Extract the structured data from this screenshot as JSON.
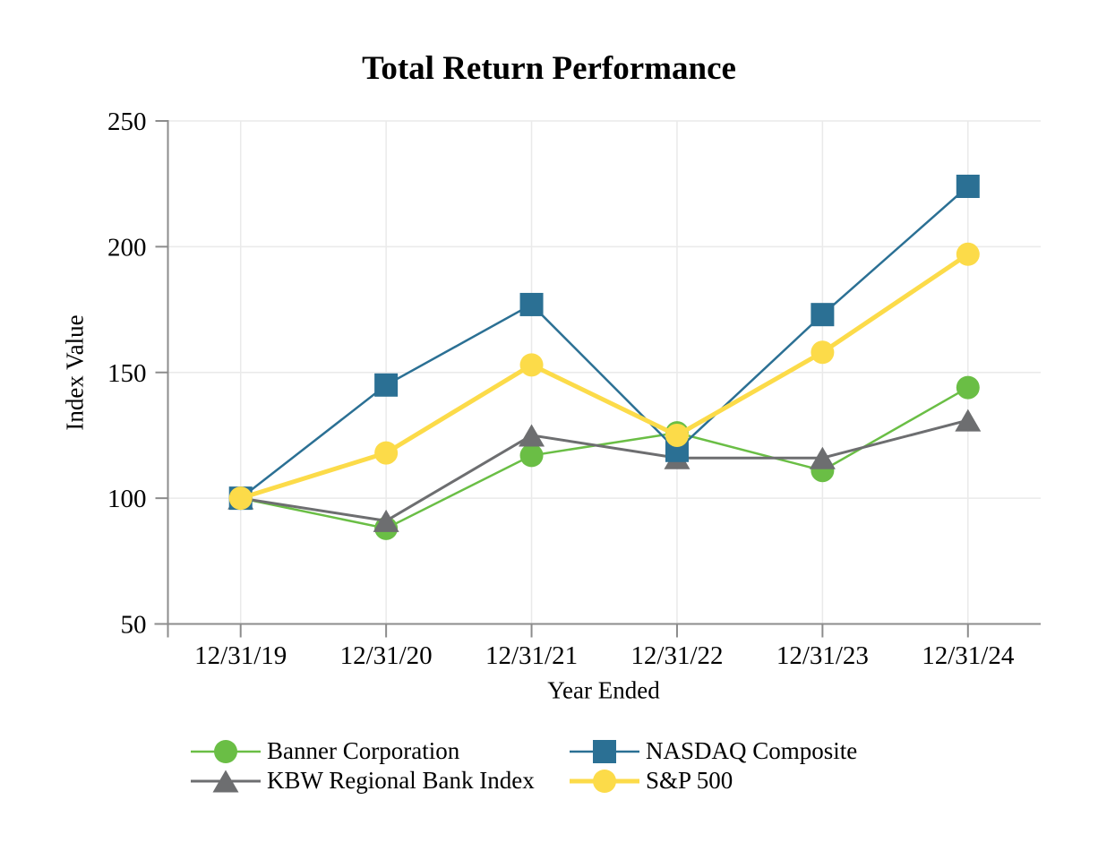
{
  "chart_data": {
    "type": "line",
    "title": "Total Return Performance",
    "xlabel": "Year Ended",
    "ylabel": "Index Value",
    "categories": [
      "12/31/19",
      "12/31/20",
      "12/31/21",
      "12/31/22",
      "12/31/23",
      "12/31/24"
    ],
    "series": [
      {
        "name": "Banner Corporation",
        "marker": "circle",
        "color": "#6ABE45",
        "line_width": 2.5,
        "values": [
          100,
          88,
          117,
          126,
          111,
          144
        ]
      },
      {
        "name": "KBW Regional Bank Index",
        "marker": "triangle",
        "color": "#6D6E70",
        "line_width": 3,
        "values": [
          100,
          91,
          125,
          116,
          116,
          131
        ]
      },
      {
        "name": "NASDAQ Composite",
        "marker": "square",
        "color": "#2B7094",
        "line_width": 2.5,
        "values": [
          100,
          145,
          177,
          119,
          173,
          224
        ]
      },
      {
        "name": "S&P 500",
        "marker": "circle",
        "color": "#FCDB49",
        "line_width": 5,
        "values": [
          100,
          118,
          153,
          125,
          158,
          197
        ]
      }
    ],
    "y_ticks": [
      50,
      100,
      150,
      200,
      250
    ],
    "ylim": [
      50,
      250
    ],
    "grid": true,
    "legend_position": "bottom",
    "axis_color": "#8C8C8C",
    "gridline_color": "#EAEAEA",
    "text_color": "#000000"
  }
}
